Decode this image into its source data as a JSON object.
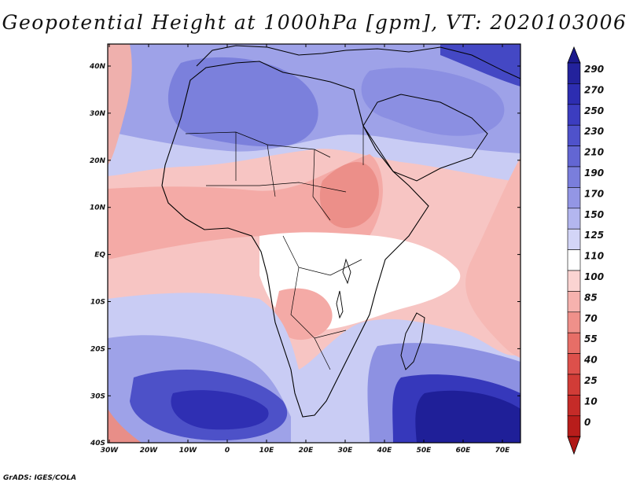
{
  "title": "Geopotential Height at 1000hPa [gpm], VT: 2020103006",
  "credit": "GrADS: IGES/COLA",
  "map": {
    "x_ticks": [
      "30W",
      "20W",
      "10W",
      "0",
      "10E",
      "20E",
      "30E",
      "40E",
      "50E",
      "60E",
      "70E"
    ],
    "y_ticks": [
      "40N",
      "30N",
      "20N",
      "10N",
      "EQ",
      "10S",
      "20S",
      "30S",
      "40S"
    ],
    "region": "Africa"
  },
  "colorbar": {
    "labels": [
      "290",
      "270",
      "250",
      "230",
      "210",
      "190",
      "170",
      "150",
      "125",
      "110",
      "100",
      "85",
      "70",
      "55",
      "40",
      "25",
      "10",
      "0"
    ],
    "colors": [
      "#23229c",
      "#2d2db1",
      "#3c3dc0",
      "#4f52cb",
      "#6366d3",
      "#7a7edc",
      "#9396e5",
      "#b3b6ef",
      "#d3d5f7",
      "#ffffff",
      "#fbd4d2",
      "#f6b2ae",
      "#ef908a",
      "#e76e67",
      "#dd504b",
      "#d13c37",
      "#c52b28",
      "#b81d1b"
    ],
    "top_color": "#1c1a8c",
    "bottom_color": "#b01816"
  }
}
